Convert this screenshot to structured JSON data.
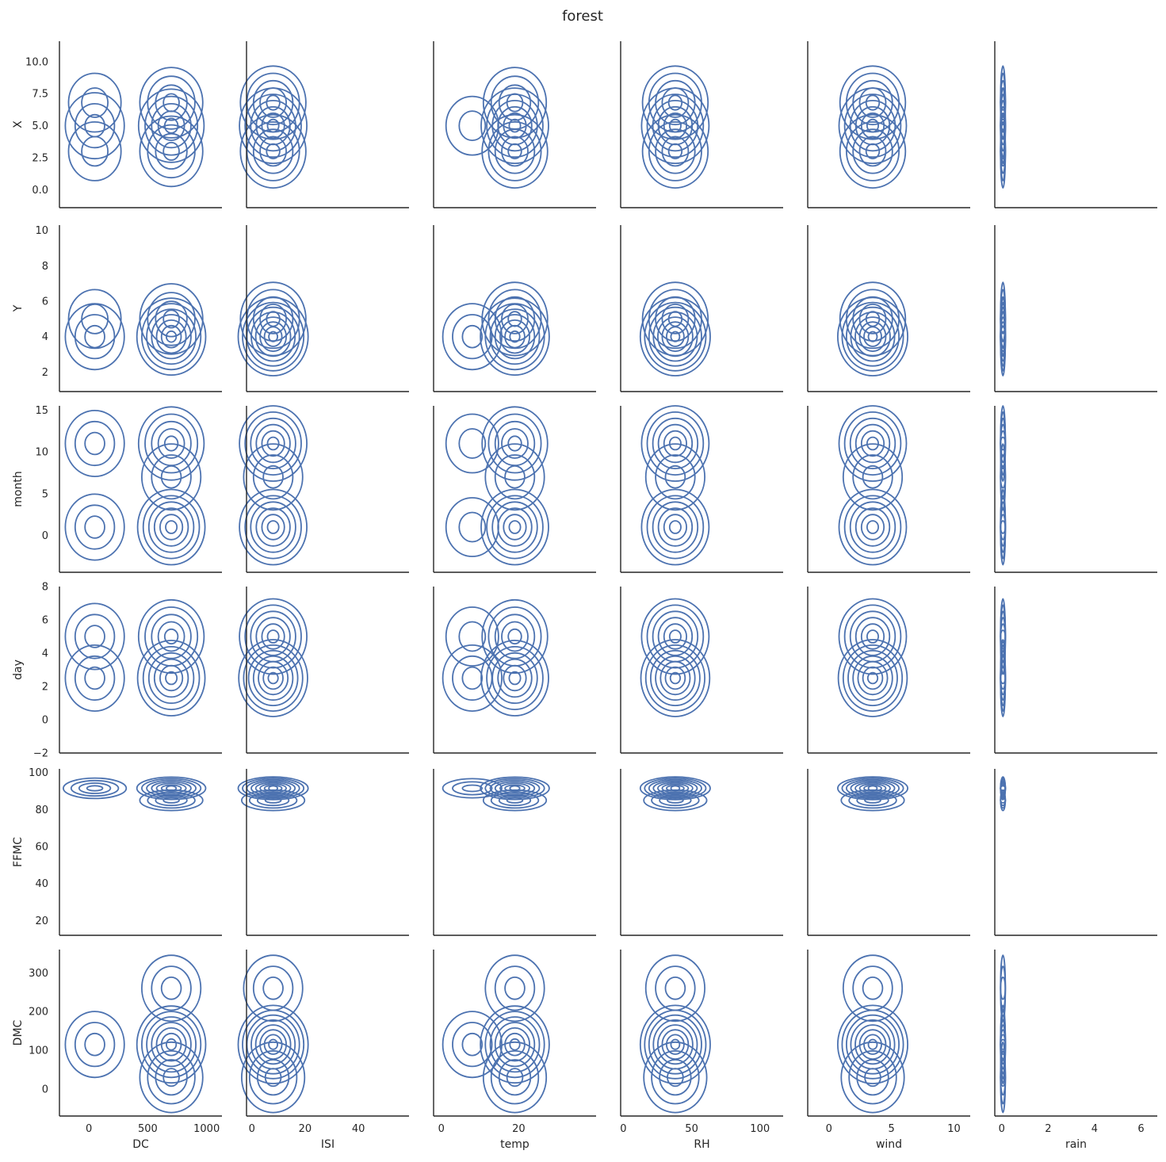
{
  "chart_data": {
    "type": "kde-pairgrid",
    "title": "forest",
    "line_color": "#4c72b0",
    "x_vars": [
      {
        "name": "DC",
        "xlim": [
          -250,
          1130
        ],
        "ticks": [
          0,
          500,
          1000
        ]
      },
      {
        "name": "ISI",
        "xlim": [
          -2,
          59
        ],
        "ticks": [
          0,
          20,
          40,
          60
        ]
      },
      {
        "name": "temp",
        "xlim": [
          -2,
          40
        ],
        "ticks": [
          0,
          20
        ]
      },
      {
        "name": "RH",
        "xlim": [
          -2,
          117
        ],
        "ticks": [
          0,
          50,
          100
        ]
      },
      {
        "name": "wind",
        "xlim": [
          -1.7,
          11.3
        ],
        "ticks": [
          0,
          5,
          10
        ]
      },
      {
        "name": "rain",
        "xlim": [
          -0.3,
          6.7
        ],
        "ticks": [
          0,
          2,
          4,
          6
        ]
      }
    ],
    "y_vars": [
      {
        "name": "X",
        "ylim": [
          -1.4,
          11.6
        ],
        "ticks": [
          0.0,
          2.5,
          5.0,
          7.5,
          10.0
        ],
        "tick_labels": [
          "0.0",
          "2.5",
          "5.0",
          "7.5",
          "10.0"
        ]
      },
      {
        "name": "Y",
        "ylim": [
          0.9,
          10.3
        ],
        "ticks": [
          2,
          4,
          6,
          8,
          10
        ]
      },
      {
        "name": "month",
        "ylim": [
          -4.4,
          15.5
        ],
        "ticks": [
          0,
          5,
          10,
          15
        ]
      },
      {
        "name": "day",
        "ylim": [
          -2,
          8
        ],
        "ticks": [
          -2,
          0,
          2,
          4,
          6,
          8
        ]
      },
      {
        "name": "FFMC",
        "ylim": [
          12,
          102
        ],
        "ticks": [
          20,
          40,
          60,
          80,
          100
        ]
      },
      {
        "name": "DMC",
        "ylim": [
          -70,
          360
        ],
        "ticks": [
          0,
          100,
          200,
          300
        ]
      }
    ],
    "density_modes": {
      "X": [
        [
          5.0,
          0.45
        ],
        [
          3.0,
          0.3
        ],
        [
          6.8,
          0.25
        ]
      ],
      "Y": [
        [
          4.0,
          0.7
        ],
        [
          5.0,
          0.3
        ]
      ],
      "month": [
        [
          1.0,
          0.5
        ],
        [
          11.0,
          0.4
        ],
        [
          7.0,
          0.1
        ]
      ],
      "day": [
        [
          2.5,
          0.6
        ],
        [
          5.0,
          0.4
        ]
      ],
      "FFMC": [
        [
          91.5,
          0.8
        ],
        [
          85.0,
          0.2
        ]
      ],
      "DMC": [
        [
          115,
          0.7
        ],
        [
          30,
          0.2
        ],
        [
          260,
          0.1
        ]
      ]
    },
    "x_modes": {
      "DC": [
        [
          700,
          0.8
        ],
        [
          50,
          0.2
        ]
      ],
      "ISI": [
        [
          8,
          1.0
        ]
      ],
      "temp": [
        [
          19,
          0.85
        ],
        [
          8,
          0.15
        ]
      ],
      "RH": [
        [
          38,
          1.0
        ]
      ],
      "wind": [
        [
          3.5,
          1.0
        ]
      ],
      "rain": [
        [
          0.05,
          1.0
        ]
      ]
    },
    "grid": false,
    "legend": "none"
  }
}
